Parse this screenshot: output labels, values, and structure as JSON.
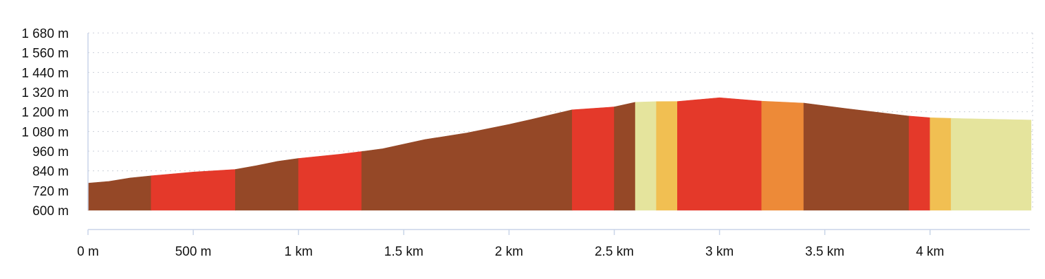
{
  "chart_data": {
    "type": "area",
    "title": "",
    "xlabel": "",
    "ylabel": "",
    "grid": true,
    "xlim": [
      0,
      4.48
    ],
    "ylim": [
      600,
      1680
    ],
    "y_ticks": [
      600,
      720,
      840,
      960,
      1080,
      1200,
      1320,
      1440,
      1560,
      1680
    ],
    "y_tick_labels": [
      "600 m",
      "720 m",
      "840 m",
      "960 m",
      "1 080 m",
      "1 200 m",
      "1 320 m",
      "1 440 m",
      "1 560 m",
      "1 680 m"
    ],
    "x_ticks": [
      0,
      0.5,
      1,
      1.5,
      2,
      2.5,
      3,
      3.5,
      4
    ],
    "x_tick_labels": [
      "0 m",
      "500 m",
      "1 km",
      "1.5 km",
      "2 km",
      "2.5 km",
      "3 km",
      "3.5 km",
      "4 km"
    ],
    "profile": {
      "x_km": [
        0,
        0.1,
        0.2,
        0.3,
        0.5,
        0.7,
        0.8,
        0.9,
        1.0,
        1.2,
        1.3,
        1.4,
        1.6,
        1.8,
        2.0,
        2.1,
        2.2,
        2.3,
        2.5,
        2.6,
        2.7,
        2.8,
        3.0,
        3.2,
        3.4,
        3.6,
        3.9,
        4.0,
        4.1,
        4.48
      ],
      "elevation_m": [
        765,
        776,
        797,
        810,
        833,
        849,
        872,
        898,
        916,
        942,
        958,
        975,
        1031,
        1071,
        1123,
        1152,
        1182,
        1212,
        1230,
        1258,
        1262,
        1263,
        1286,
        1265,
        1253,
        1220,
        1174,
        1164,
        1160,
        1150
      ]
    },
    "segments": [
      {
        "from_km": 0.0,
        "to_km": 0.3,
        "color": "#954827"
      },
      {
        "from_km": 0.3,
        "to_km": 0.7,
        "color": "#e4392a"
      },
      {
        "from_km": 0.7,
        "to_km": 1.0,
        "color": "#954827"
      },
      {
        "from_km": 1.0,
        "to_km": 1.3,
        "color": "#e4392a"
      },
      {
        "from_km": 1.3,
        "to_km": 2.3,
        "color": "#954827"
      },
      {
        "from_km": 2.3,
        "to_km": 2.5,
        "color": "#e4392a"
      },
      {
        "from_km": 2.5,
        "to_km": 2.6,
        "color": "#954827"
      },
      {
        "from_km": 2.6,
        "to_km": 2.7,
        "color": "#e5e49d"
      },
      {
        "from_km": 2.7,
        "to_km": 2.8,
        "color": "#f1bf52"
      },
      {
        "from_km": 2.8,
        "to_km": 3.2,
        "color": "#e4392a"
      },
      {
        "from_km": 3.2,
        "to_km": 3.4,
        "color": "#ed8a38"
      },
      {
        "from_km": 3.4,
        "to_km": 3.9,
        "color": "#954827"
      },
      {
        "from_km": 3.9,
        "to_km": 4.0,
        "color": "#e4392a"
      },
      {
        "from_km": 4.0,
        "to_km": 4.1,
        "color": "#f1bf52"
      },
      {
        "from_km": 4.1,
        "to_km": 4.48,
        "color": "#e5e49d"
      }
    ]
  }
}
